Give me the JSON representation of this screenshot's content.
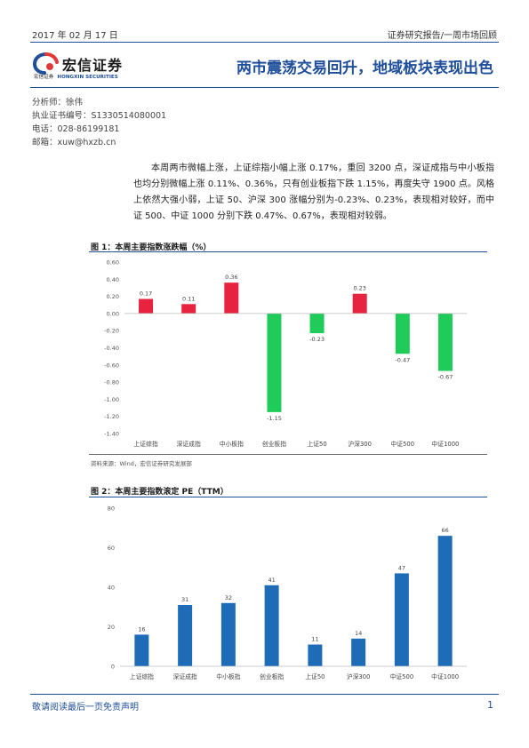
{
  "header": {
    "date": "2017 年 02 月 17 日",
    "report_type": "证券研究报告/一周市场回顾"
  },
  "logo": {
    "name": "宏信证券",
    "sub_cn": "宏信证券",
    "sub_en": "HONGXIN SECURITIES",
    "colors": [
      "#1f4e9a",
      "#e23a3a"
    ]
  },
  "title": "两市震荡交易回升，地域板块表现出色",
  "analyst": {
    "name_line": "分析师：徐伟",
    "license_line": "执业证书编号：S1330514080001",
    "phone_line": "电话：028-86199181",
    "email_line": "邮箱：xuw@hxzb.cn"
  },
  "summary": "本周两市微幅上涨，上证综指小幅上涨 0.17%，重回 3200 点，深证成指与中小板指也均分别微幅上涨 0.11%、0.36%，只有创业板指下跌 1.15%，再度失守 1900 点。风格上依然大强小弱，上证 50、沪深 300 涨幅分别为-0.23%、0.23%，表现相对较好，而中证 500、中证 1000 分别下跌 0.47%、0.67%，表现相对较弱。",
  "figure1": {
    "title": "图 1：本周主要指数涨跌幅（%）",
    "source": "资料来源：Wind，宏信证券研究发展部"
  },
  "figure2": {
    "title": "图 2：本周主要指数滚定 PE（TTM）"
  },
  "chart_data": [
    {
      "type": "bar",
      "categories": [
        "上证综指",
        "深证成指",
        "中小板指",
        "创业板指",
        "上证50",
        "沪深300",
        "中证500",
        "中证1000"
      ],
      "values": [
        0.17,
        0.11,
        0.36,
        -1.15,
        -0.23,
        0.23,
        -0.47,
        -0.67
      ],
      "value_labels": [
        "0.17",
        "0.11",
        "0.36",
        "-1.15",
        "-0.23",
        "0.23",
        "-0.47",
        "-0.67"
      ],
      "ylim": [
        -1.4,
        0.6
      ],
      "yticks": [
        "0.60",
        "0.40",
        "0.20",
        "0.00",
        "-0.20",
        "-0.40",
        "-0.60",
        "-0.80",
        "-1.00",
        "-1.20",
        "-1.40"
      ],
      "ytick_values": [
        0.6,
        0.4,
        0.2,
        0.0,
        -0.2,
        -0.4,
        -0.6,
        -0.8,
        -1.0,
        -1.2,
        -1.4
      ],
      "grid": false,
      "colors": {
        "positive": "#e8233f",
        "negative": "#1fcc5a"
      }
    },
    {
      "type": "bar",
      "categories": [
        "上证综指",
        "深证成指",
        "中小板指",
        "创业板指",
        "上证50",
        "沪深300",
        "中证500",
        "中证1000"
      ],
      "values": [
        16,
        31,
        32,
        41,
        11,
        14,
        47,
        66
      ],
      "value_labels": [
        "16",
        "31",
        "32",
        "41",
        "11",
        "14",
        "47",
        "66"
      ],
      "ylim": [
        0,
        80
      ],
      "yticks": [
        "80",
        "60",
        "40",
        "20",
        "0"
      ],
      "ytick_values": [
        80,
        60,
        40,
        20,
        0
      ],
      "grid": false,
      "colors": {
        "bar": "#1e6bb8"
      }
    }
  ],
  "footer": {
    "disclaimer": "敬请阅读最后一页免责声明",
    "page": "1"
  }
}
